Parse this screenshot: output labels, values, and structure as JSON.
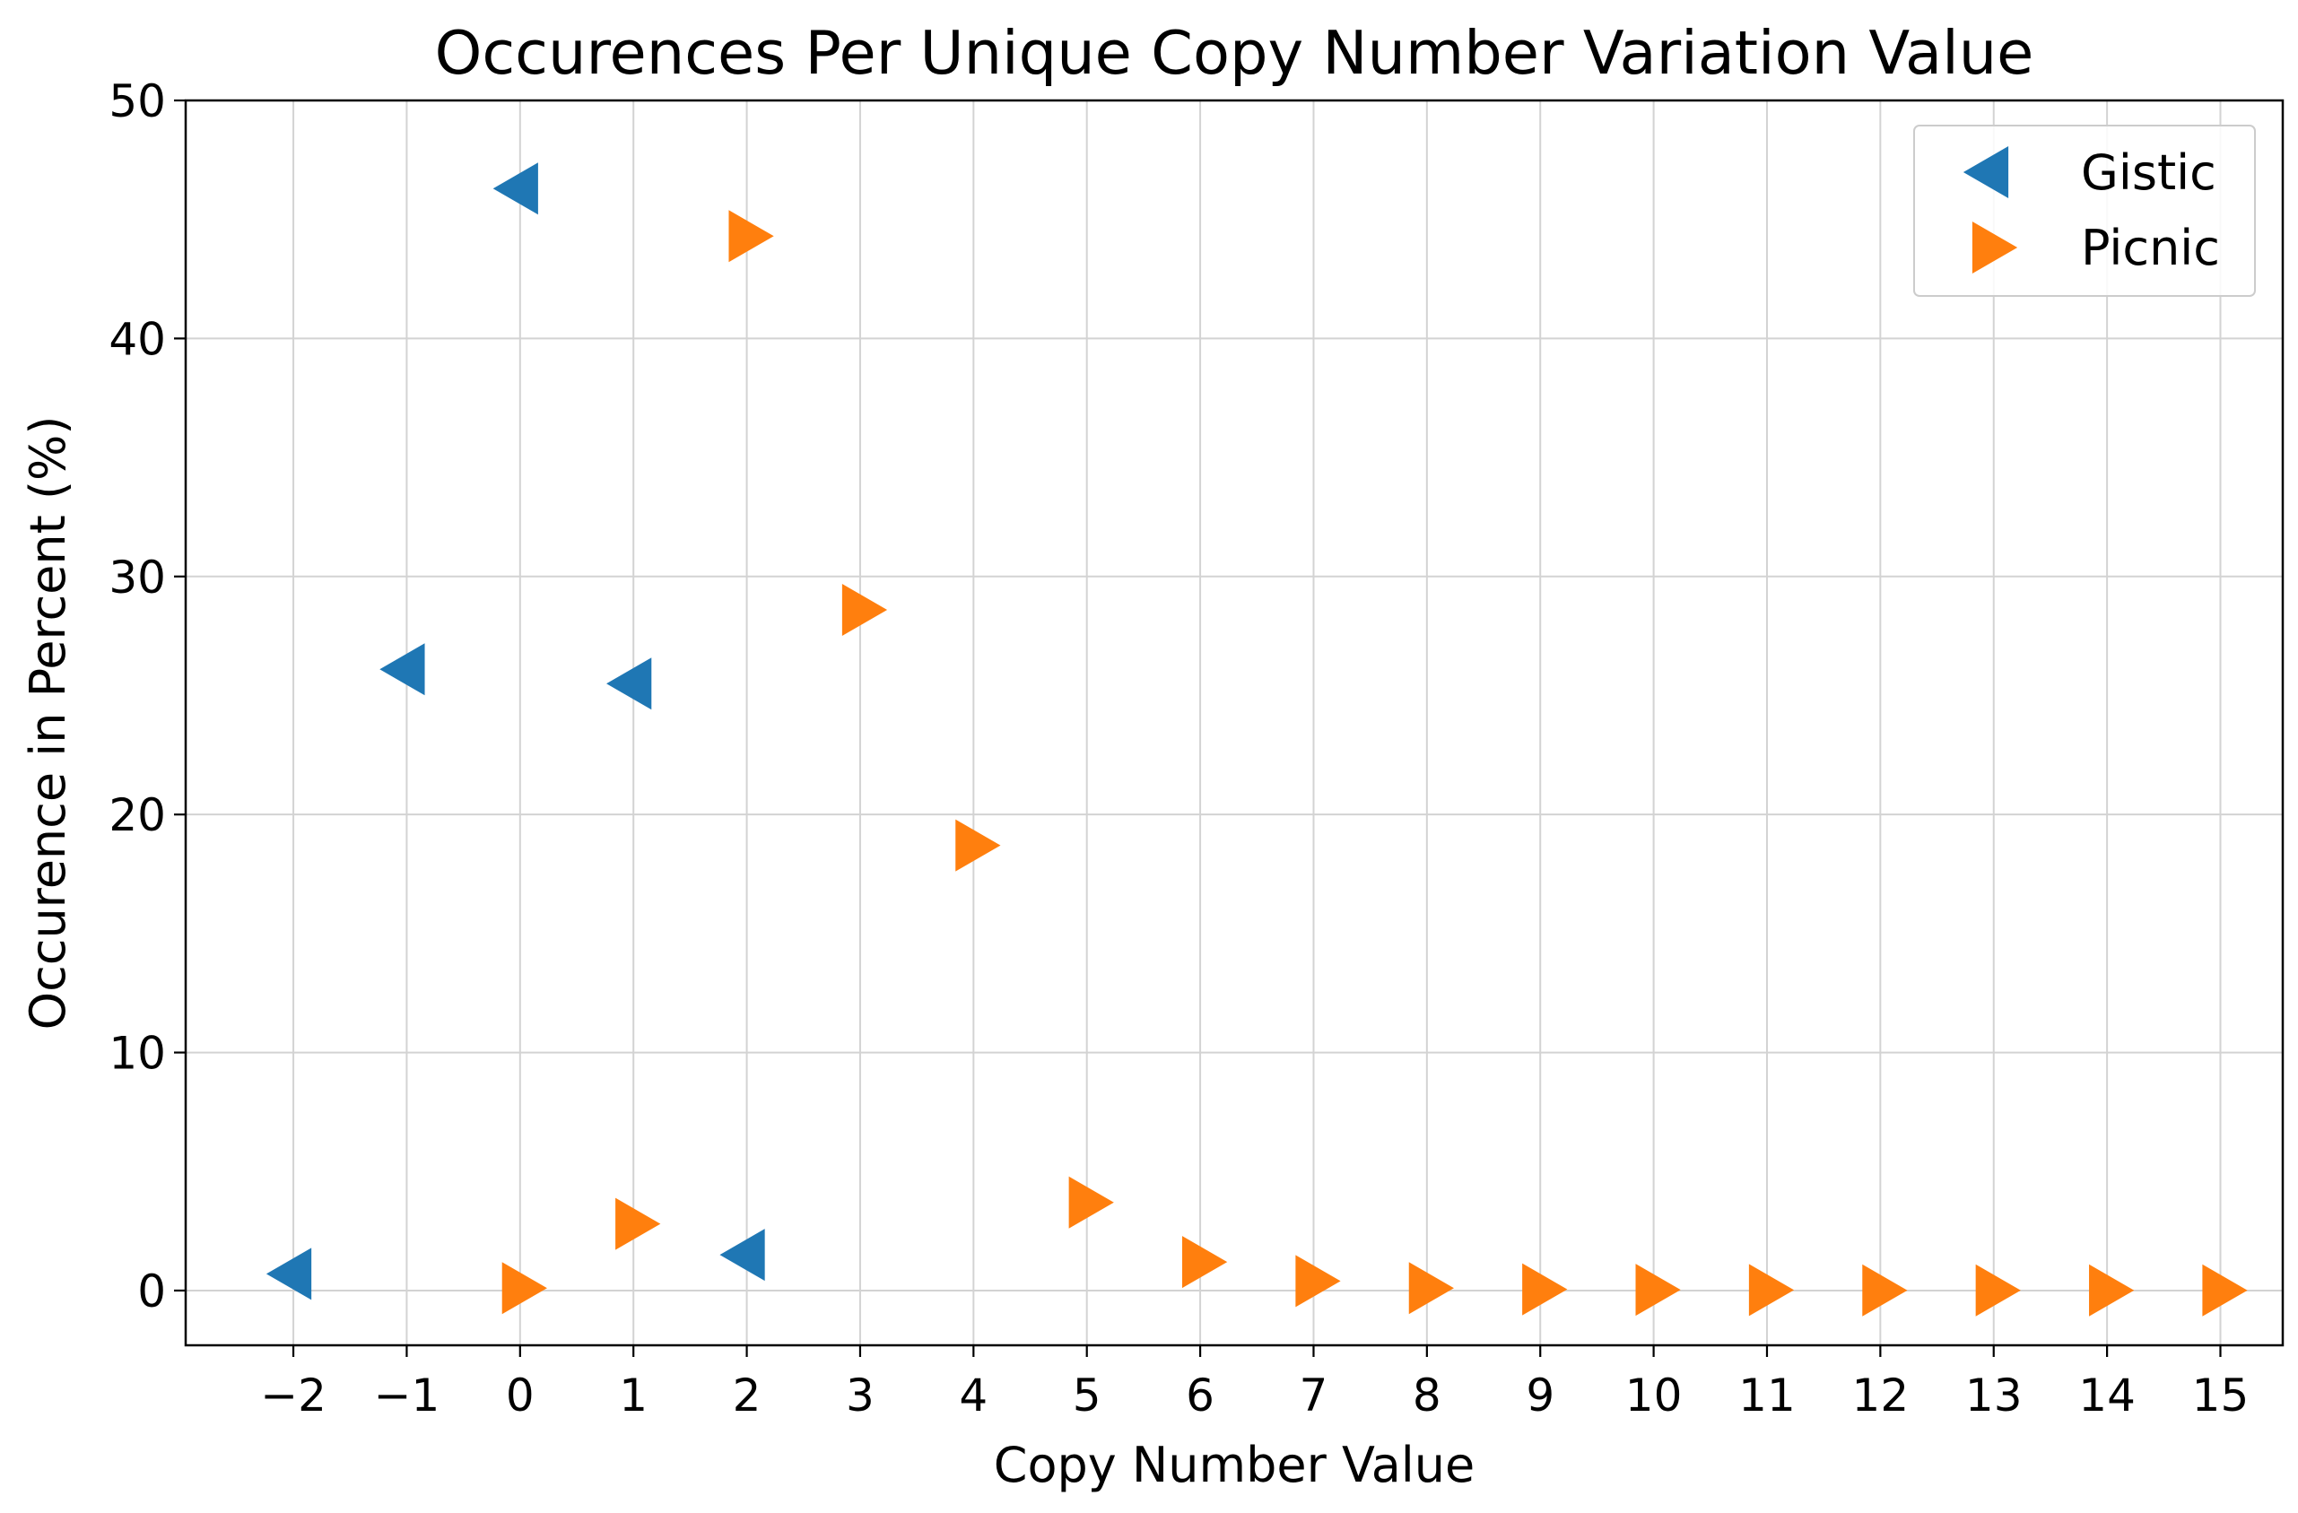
{
  "chart_data": {
    "type": "scatter",
    "title": "Occurences Per Unique Copy Number Variation Value",
    "xlabel": "Copy Number Value",
    "ylabel": "Occurence in Percent (%)",
    "xlim": [
      -2.95,
      15.55
    ],
    "ylim": [
      -2.3,
      50
    ],
    "x_ticks": [
      -2,
      -1,
      0,
      1,
      2,
      3,
      4,
      5,
      6,
      7,
      8,
      9,
      10,
      11,
      12,
      13,
      14,
      15
    ],
    "x_tick_labels": [
      "−2",
      "−1",
      "0",
      "1",
      "2",
      "3",
      "4",
      "5",
      "6",
      "7",
      "8",
      "9",
      "10",
      "11",
      "12",
      "13",
      "14",
      "15"
    ],
    "y_ticks": [
      0,
      10,
      20,
      30,
      40,
      50
    ],
    "y_tick_labels": [
      "0",
      "10",
      "20",
      "30",
      "40",
      "50"
    ],
    "grid": true,
    "legend_position": "top-right",
    "series": [
      {
        "name": "Gistic",
        "marker": "triangle-left",
        "color": "#1f77b4",
        "x": [
          -2,
          -1,
          0,
          1,
          2
        ],
        "y": [
          0.7,
          26.1,
          46.3,
          25.5,
          1.5
        ]
      },
      {
        "name": "Picnic",
        "marker": "triangle-right",
        "color": "#ff7f0e",
        "x": [
          0,
          1,
          2,
          3,
          4,
          5,
          6,
          7,
          8,
          9,
          10,
          11,
          12,
          13,
          14,
          15
        ],
        "y": [
          0.1,
          2.8,
          44.3,
          28.6,
          18.7,
          3.7,
          1.2,
          0.4,
          0.1,
          0.05,
          0.03,
          0.02,
          0.01,
          0.01,
          0.01,
          0.01
        ]
      }
    ]
  }
}
